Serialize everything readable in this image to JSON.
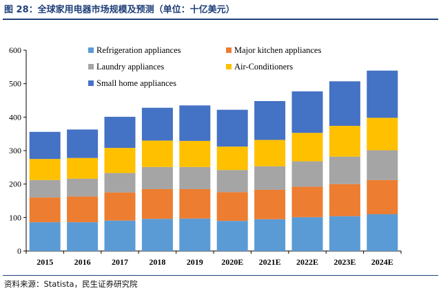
{
  "header": {
    "title": "图 28：全球家用电器市场规模及预测（单位：十亿美元）"
  },
  "footer": {
    "source": "资料来源：Statista，民生证券研究院"
  },
  "chart_data": {
    "type": "bar",
    "stacked": true,
    "title": "",
    "xlabel": "",
    "ylabel": "",
    "ylim": [
      0,
      600
    ],
    "yticks": [
      0,
      100,
      200,
      300,
      400,
      500,
      600
    ],
    "grid": false,
    "legend_position": "top",
    "categories": [
      "2015",
      "2016",
      "2017",
      "2018",
      "2019",
      "2020E",
      "2021E",
      "2022E",
      "2023E",
      "2024E"
    ],
    "series": [
      {
        "name": "Refrigeration appliances",
        "color": "#5b9bd5",
        "values": [
          86,
          86,
          91,
          96,
          97,
          90,
          95,
          101,
          104,
          110
        ]
      },
      {
        "name": "Major kitchen appliances",
        "color": "#ed7d31",
        "values": [
          74,
          77,
          84,
          89,
          88,
          86,
          88,
          91,
          96,
          102
        ]
      },
      {
        "name": "Laundry appliances",
        "color": "#a5a5a5",
        "values": [
          52,
          53,
          58,
          66,
          66,
          66,
          70,
          76,
          82,
          89
        ]
      },
      {
        "name": "Air-Conditioners",
        "color": "#ffc000",
        "values": [
          63,
          62,
          75,
          79,
          78,
          70,
          79,
          85,
          92,
          97
        ]
      },
      {
        "name": "Small home appliances",
        "color": "#4472c4",
        "values": [
          81,
          85,
          93,
          98,
          106,
          110,
          116,
          124,
          133,
          141
        ]
      }
    ]
  }
}
